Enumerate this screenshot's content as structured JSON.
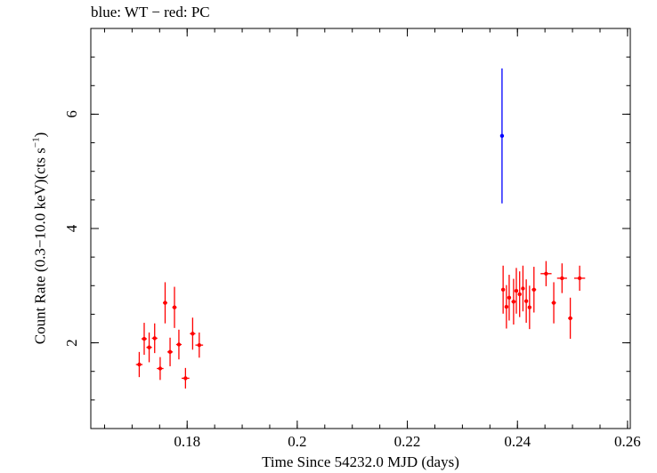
{
  "chart_data": {
    "type": "scatter",
    "title": "blue: WT − red: PC",
    "xlabel": "Time Since 54232.0 MJD (days)",
    "ylabel_main": "Count Rate (0.3−10.0 keV)(cts s",
    "ylabel_sup": "−1",
    "ylabel_close": ")",
    "xlim": [
      0.1625,
      0.2605
    ],
    "ylim": [
      0.5,
      7.5
    ],
    "x_ticks": [
      {
        "value": 0.18,
        "label": "0.18"
      },
      {
        "value": 0.2,
        "label": "0.2"
      },
      {
        "value": 0.22,
        "label": "0.22"
      },
      {
        "value": 0.24,
        "label": "0.24"
      },
      {
        "value": 0.26,
        "label": "0.26"
      }
    ],
    "y_ticks": [
      {
        "value": 2,
        "label": "2"
      },
      {
        "value": 4,
        "label": "4"
      },
      {
        "value": 6,
        "label": "6"
      }
    ],
    "x_minor_step": 0.005,
    "y_minor_step": 0.5,
    "series": [
      {
        "name": "WT",
        "color": "#0000ff",
        "points": [
          {
            "x": 0.2372,
            "y": 5.62,
            "xerr": 0.0,
            "yerr": 1.18
          }
        ]
      },
      {
        "name": "PC",
        "color": "#ff0000",
        "points": [
          {
            "x": 0.1713,
            "y": 1.62,
            "xerr": 0.0006,
            "yerr": 0.22
          },
          {
            "x": 0.1722,
            "y": 2.07,
            "xerr": 0.0005,
            "yerr": 0.28
          },
          {
            "x": 0.1731,
            "y": 1.92,
            "xerr": 0.0005,
            "yerr": 0.26
          },
          {
            "x": 0.1741,
            "y": 2.08,
            "xerr": 0.0005,
            "yerr": 0.26
          },
          {
            "x": 0.1751,
            "y": 1.55,
            "xerr": 0.0006,
            "yerr": 0.2
          },
          {
            "x": 0.176,
            "y": 2.7,
            "xerr": 0.0004,
            "yerr": 0.36
          },
          {
            "x": 0.1769,
            "y": 1.84,
            "xerr": 0.0005,
            "yerr": 0.25
          },
          {
            "x": 0.1777,
            "y": 2.62,
            "xerr": 0.0004,
            "yerr": 0.36
          },
          {
            "x": 0.1785,
            "y": 1.97,
            "xerr": 0.0005,
            "yerr": 0.26
          },
          {
            "x": 0.1797,
            "y": 1.38,
            "xerr": 0.0007,
            "yerr": 0.18
          },
          {
            "x": 0.181,
            "y": 2.16,
            "xerr": 0.0005,
            "yerr": 0.28
          },
          {
            "x": 0.1822,
            "y": 1.96,
            "xerr": 0.0007,
            "yerr": 0.22
          },
          {
            "x": 0.2374,
            "y": 2.93,
            "xerr": 0.0003,
            "yerr": 0.42
          },
          {
            "x": 0.238,
            "y": 2.63,
            "xerr": 0.0003,
            "yerr": 0.38
          },
          {
            "x": 0.2385,
            "y": 2.79,
            "xerr": 0.0003,
            "yerr": 0.4
          },
          {
            "x": 0.2393,
            "y": 2.72,
            "xerr": 0.0004,
            "yerr": 0.4
          },
          {
            "x": 0.2398,
            "y": 2.91,
            "xerr": 0.0003,
            "yerr": 0.4
          },
          {
            "x": 0.2404,
            "y": 2.85,
            "xerr": 0.0003,
            "yerr": 0.4
          },
          {
            "x": 0.241,
            "y": 2.95,
            "xerr": 0.0003,
            "yerr": 0.4
          },
          {
            "x": 0.2416,
            "y": 2.73,
            "xerr": 0.0003,
            "yerr": 0.38
          },
          {
            "x": 0.2422,
            "y": 2.62,
            "xerr": 0.0003,
            "yerr": 0.38
          },
          {
            "x": 0.243,
            "y": 2.93,
            "xerr": 0.0004,
            "yerr": 0.4
          },
          {
            "x": 0.2452,
            "y": 3.21,
            "xerr": 0.001,
            "yerr": 0.22
          },
          {
            "x": 0.2466,
            "y": 2.7,
            "xerr": 0.0004,
            "yerr": 0.36
          },
          {
            "x": 0.2481,
            "y": 3.13,
            "xerr": 0.0009,
            "yerr": 0.26
          },
          {
            "x": 0.2496,
            "y": 2.43,
            "xerr": 0.0004,
            "yerr": 0.36
          },
          {
            "x": 0.2513,
            "y": 3.13,
            "xerr": 0.001,
            "yerr": 0.22
          }
        ]
      }
    ]
  }
}
